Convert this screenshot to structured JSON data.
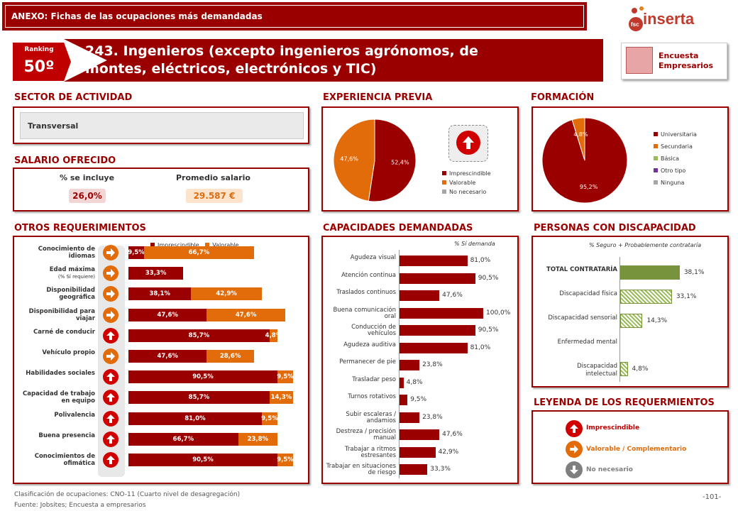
{
  "header": {
    "title": "ANEXO: Fichas de las ocupaciones más demandadas"
  },
  "logo": {
    "prefix": "fsc",
    "name": "inserta"
  },
  "ranking": {
    "label": "Ranking",
    "value": "50º"
  },
  "occupation": {
    "title": "243. Ingenieros (excepto ingenieros agrónomos, de montes, eléctricos, electrónicos y TIC)"
  },
  "encuesta": {
    "line1": "Encuesta",
    "line2": "Empresarios"
  },
  "sector": {
    "heading": "SECTOR DE ACTIVIDAD",
    "value": "Transversal"
  },
  "salario": {
    "heading": "SALARIO OFRECIDO",
    "incl_label": "% se incluye",
    "incl_value": "26,0%",
    "avg_label": "Promedio salario",
    "avg_value": "29.587 €"
  },
  "experiencia": {
    "heading": "EXPERIENCIA PREVIA",
    "legend": [
      "Imprescindible",
      "Valorable",
      "No necesario"
    ]
  },
  "formacion": {
    "heading": "FORMACIÓN",
    "legend": [
      "Universitaria",
      "Secundaria",
      "Básica",
      "Otro tipo",
      "Ninguna"
    ]
  },
  "otros": {
    "heading": "OTROS REQUERIMIENTOS"
  },
  "capacidades": {
    "heading": "CAPACIDADES DEMANDADAS",
    "note": "% Sí demanda"
  },
  "discapacidad": {
    "heading": "PERSONAS CON DISCAPACIDAD",
    "note": "% Seguro + Probablemente contrataría"
  },
  "leyenda": {
    "heading": "LEYENDA DE LOS REQUERMIENTOS",
    "items": [
      "Imprescindible",
      "Valorable / Complementario",
      "No necesario"
    ]
  },
  "footer": {
    "line1": "Clasificación de ocupaciones: CNO-11 (Cuarto nivel de desagregación)",
    "line2": "Fuente: Jobsites; Encuesta a empresarios",
    "page": "-101-"
  },
  "colors": {
    "dark_red": "#9b0000",
    "orange": "#e36c0a",
    "green": "#77933c",
    "gray": "#a6a6a6",
    "purple": "#7030a0",
    "olive": "#9bbb59"
  },
  "chart_data": [
    {
      "type": "pie",
      "name": "experiencia",
      "labels": [
        "Imprescindible",
        "Valorable",
        "No necesario"
      ],
      "values": [
        52.4,
        47.6,
        0
      ],
      "value_labels": [
        "52,4%",
        "47,6%",
        ""
      ],
      "colors": [
        "#9b0000",
        "#e36c0a",
        "#a6a6a6"
      ]
    },
    {
      "type": "pie",
      "name": "formacion",
      "labels": [
        "Universitaria",
        "Secundaria",
        "Básica",
        "Otro tipo",
        "Ninguna"
      ],
      "values": [
        95.2,
        4.8,
        0,
        0,
        0
      ],
      "value_labels": [
        "95,2%",
        "4,8%",
        "",
        "",
        ""
      ],
      "colors": [
        "#9b0000",
        "#e36c0a",
        "#9bbb59",
        "#7030a0",
        "#a6a6a6"
      ]
    },
    {
      "type": "bar",
      "name": "otros_requerimientos",
      "stacked": true,
      "orientation": "horizontal",
      "legend": [
        "Imprescindible",
        "Valorable"
      ],
      "rows": [
        {
          "label": "Conocimiento de idiomas",
          "sub": "",
          "imp": 9.5,
          "val": 66.7,
          "imp_label": "9,5%",
          "val_label": "66,7%",
          "icon": "valorable"
        },
        {
          "label": "Edad máxima",
          "sub": "(% Sí requiere)",
          "imp": 33.3,
          "val": 0,
          "imp_label": "33,3%",
          "val_label": "",
          "icon": "valorable"
        },
        {
          "label": "Disponibilidad geográfica",
          "sub": "",
          "imp": 38.1,
          "val": 42.9,
          "imp_label": "38,1%",
          "val_label": "42,9%",
          "icon": "valorable"
        },
        {
          "label": "Disponibilidad para viajar",
          "sub": "",
          "imp": 47.6,
          "val": 47.6,
          "imp_label": "47,6%",
          "val_label": "47,6%",
          "icon": "valorable"
        },
        {
          "label": "Carné de conducir",
          "sub": "",
          "imp": 85.7,
          "val": 4.8,
          "imp_label": "85,7%",
          "val_label": "4,8%",
          "icon": "imprescindible"
        },
        {
          "label": "Vehículo propio",
          "sub": "",
          "imp": 47.6,
          "val": 28.6,
          "imp_label": "47,6%",
          "val_label": "28,6%",
          "icon": "valorable"
        },
        {
          "label": "Habilidades sociales",
          "sub": "",
          "imp": 90.5,
          "val": 9.5,
          "imp_label": "90,5%",
          "val_label": "9,5%",
          "icon": "imprescindible"
        },
        {
          "label": "Capacidad de trabajo en equipo",
          "sub": "",
          "imp": 85.7,
          "val": 14.3,
          "imp_label": "85,7%",
          "val_label": "14,3%",
          "icon": "imprescindible"
        },
        {
          "label": "Polivalencia",
          "sub": "",
          "imp": 81.0,
          "val": 9.5,
          "imp_label": "81,0%",
          "val_label": "9,5%",
          "icon": "imprescindible"
        },
        {
          "label": "Buena presencia",
          "sub": "",
          "imp": 66.7,
          "val": 23.8,
          "imp_label": "66,7%",
          "val_label": "23,8%",
          "icon": "imprescindible"
        },
        {
          "label": "Conocimientos de ofimática",
          "sub": "",
          "imp": 90.5,
          "val": 9.5,
          "imp_label": "90,5%",
          "val_label": "9,5%",
          "icon": "imprescindible"
        }
      ]
    },
    {
      "type": "bar",
      "name": "capacidades",
      "orientation": "horizontal",
      "categories": [
        "Agudeza visual",
        "Atención continua",
        "Traslados continuos",
        "Buena comunicación oral",
        "Conducción de vehículos",
        "Agudeza auditiva",
        "Permanecer de pie",
        "Trasladar peso",
        "Turnos rotativos",
        "Subir escaleras / andamios",
        "Destreza / precisión manual",
        "Trabajar a ritmos estresantes",
        "Trabajar en situaciones de riesgo"
      ],
      "values": [
        81.0,
        90.5,
        47.6,
        100.0,
        90.5,
        81.0,
        23.8,
        4.8,
        9.5,
        23.8,
        47.6,
        42.9,
        33.3
      ],
      "value_labels": [
        "81,0%",
        "90,5%",
        "47,6%",
        "100,0%",
        "90,5%",
        "81,0%",
        "23,8%",
        "4,8%",
        "9,5%",
        "23,8%",
        "47,6%",
        "42,9%",
        "33,3%"
      ],
      "xlim": [
        0,
        100
      ]
    },
    {
      "type": "bar",
      "name": "discapacidad",
      "orientation": "horizontal",
      "categories": [
        "TOTAL CONTRATARÍA",
        "Discapacidad física",
        "Discapacidad sensorial",
        "Enfermedad mental",
        "Discapacidad intelectual"
      ],
      "values": [
        38.1,
        33.1,
        14.3,
        0,
        4.8
      ],
      "value_labels": [
        "38,1%",
        "33,1%",
        "14,3%",
        "",
        "4,8%"
      ],
      "xlim": [
        0,
        100
      ]
    }
  ]
}
